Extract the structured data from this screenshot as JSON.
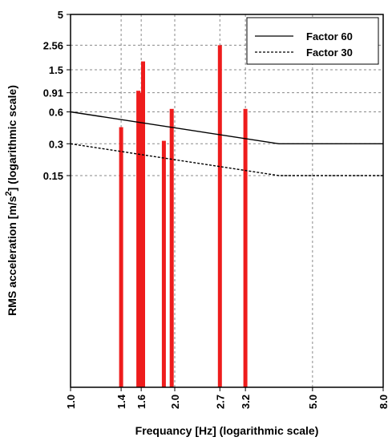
{
  "chart_data": {
    "type": "bar",
    "xlabel": "Frequancy [Hz] (logarithmic scale)",
    "ylabel_main": "RMS acceleration [m/s",
    "ylabel_sup": "2",
    "ylabel_tail": "] (logarithmic scale)",
    "x_scale": "log",
    "y_scale": "log",
    "xlim": [
      1.0,
      8.0
    ],
    "ylim": [
      0.0015,
      5
    ],
    "x_ticks": [
      1.0,
      1.4,
      1.6,
      2.0,
      2.7,
      3.2,
      5.0,
      8.0
    ],
    "x_tick_labels": [
      "1.0",
      "1.4",
      "1.6",
      "2.0",
      "2.7",
      "3.2",
      "5.0",
      "8.0"
    ],
    "y_ticks": [
      0.15,
      0.3,
      0.6,
      0.91,
      1.5,
      2.56,
      5
    ],
    "y_tick_labels": [
      "0.15",
      "0.3",
      "0.6",
      "0.91",
      "1.5",
      "2.56",
      "5"
    ],
    "grid": true,
    "legend_position": "top-right",
    "bars": {
      "color": "#ee1c1c",
      "points": [
        {
          "x": 1.4,
          "y": 0.43
        },
        {
          "x": 1.57,
          "y": 0.95
        },
        {
          "x": 1.6,
          "y": 0.91
        },
        {
          "x": 1.62,
          "y": 1.8
        },
        {
          "x": 1.86,
          "y": 0.32
        },
        {
          "x": 1.96,
          "y": 0.64
        },
        {
          "x": 2.7,
          "y": 2.56
        },
        {
          "x": 3.2,
          "y": 0.64
        }
      ]
    },
    "series": [
      {
        "name": "Factor 60",
        "style": "solid",
        "color": "#000000",
        "x": [
          1.0,
          4.0,
          8.0
        ],
        "y": [
          0.6,
          0.3,
          0.3
        ]
      },
      {
        "name": "Factor 30",
        "style": "dashed",
        "color": "#000000",
        "x": [
          1.0,
          4.0,
          8.0
        ],
        "y": [
          0.3,
          0.15,
          0.15
        ]
      }
    ]
  }
}
